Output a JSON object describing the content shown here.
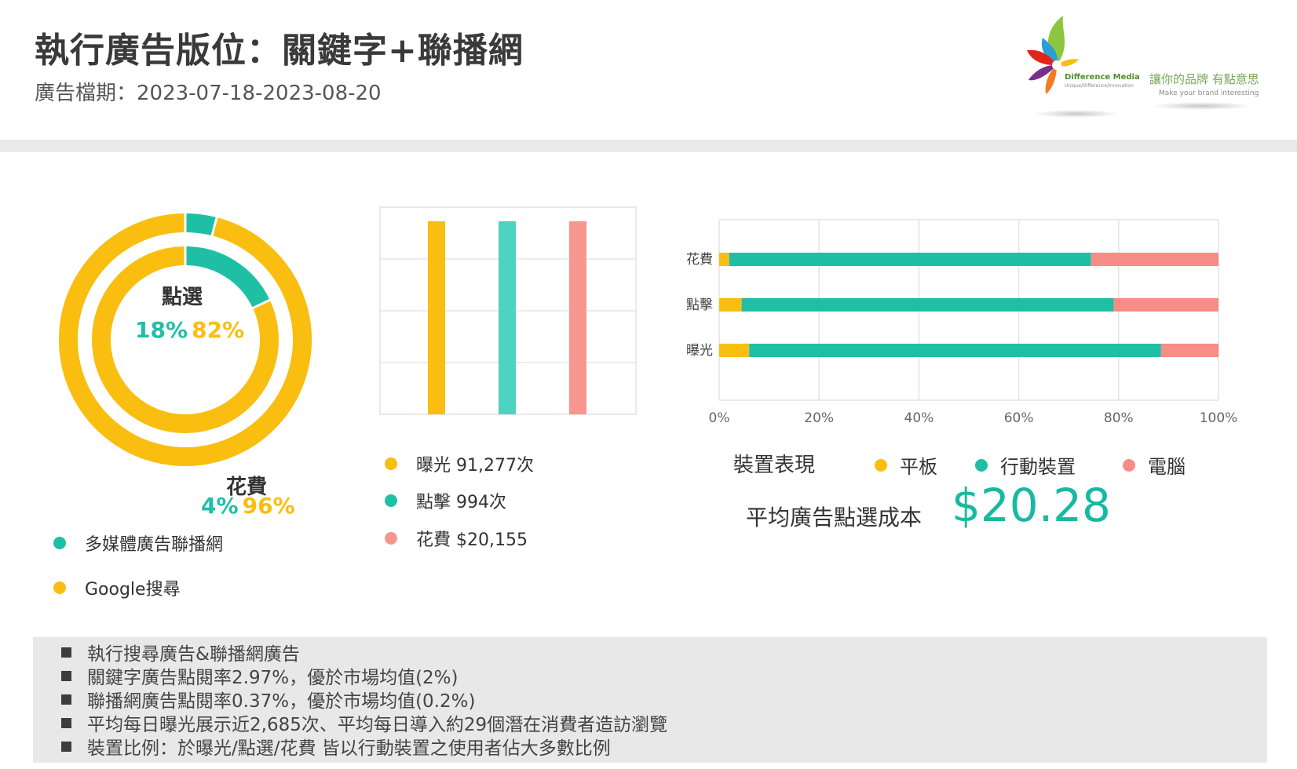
{
  "header": {
    "title": "執行廣告版位：關鍵字+聯播網",
    "period_label": "廣告檔期：2023-07-18-2023-08-20"
  },
  "logo": {
    "brand": "Difference Media",
    "tagline": "Unique/Difference/Innovation",
    "slogan": "讓你的品牌 有點意思",
    "slogan_en": "Make your brand interesting"
  },
  "donut": {
    "inner_label": "點選",
    "inner_pct_a": "18%",
    "inner_pct_b": "82%",
    "outer_label": "花費",
    "outer_pct_a": "4%",
    "outer_pct_b": "96%",
    "legend": [
      {
        "label": "多媒體廣告聯播網",
        "color": "#1fbfa6"
      },
      {
        "label": "Google搜尋",
        "color": "#f9be10"
      }
    ]
  },
  "metrics": {
    "items": [
      {
        "label": "曝光 91,277次",
        "color": "#f9be10"
      },
      {
        "label": "點擊 994次",
        "color": "#1fbfa6"
      },
      {
        "label": "花費 $20,155",
        "color": "#f79790"
      }
    ]
  },
  "device": {
    "title": "裝置表現",
    "legend": [
      {
        "label": "平板",
        "color": "#f9be10"
      },
      {
        "label": "行動裝置",
        "color": "#1fbfa6"
      },
      {
        "label": "電腦",
        "color": "#f88c87"
      }
    ]
  },
  "cpc": {
    "label": "平均廣告點選成本",
    "value": "$20.28"
  },
  "chart_data": [
    {
      "type": "pie",
      "title": "",
      "rings": [
        {
          "name": "點選",
          "values": [
            18,
            82
          ],
          "labels": [
            "多媒體廣告聯播網",
            "Google搜尋"
          ]
        },
        {
          "name": "花費",
          "values": [
            4,
            96
          ],
          "labels": [
            "多媒體廣告聯播網",
            "Google搜尋"
          ]
        }
      ],
      "colors": [
        "#1fbfa6",
        "#f9be10"
      ]
    },
    {
      "type": "bar",
      "categories": [
        "曝光",
        "點擊",
        "花費"
      ],
      "values": [
        1,
        1,
        1
      ],
      "colors": [
        "#f9be10",
        "#4fd3c1",
        "#f79790"
      ],
      "grid": true
    },
    {
      "type": "bar",
      "orientation": "horizontal",
      "stacked": true,
      "percent": true,
      "categories": [
        "花費",
        "點擊",
        "曝光"
      ],
      "series": [
        {
          "name": "平板",
          "values": [
            2,
            4.5,
            6
          ],
          "color": "#f9be10"
        },
        {
          "name": "行動裝置",
          "values": [
            72.5,
            74.5,
            82.5
          ],
          "color": "#1fbfa6"
        },
        {
          "name": "電腦",
          "values": [
            25.5,
            21,
            11.5
          ],
          "color": "#f88c87"
        }
      ],
      "x_ticks": [
        "0%",
        "20%",
        "40%",
        "60%",
        "80%",
        "100%"
      ],
      "xlim": [
        0,
        100
      ],
      "grid": true,
      "legend_position": "bottom"
    }
  ],
  "notes": [
    "執行搜尋廣告&聯播網廣告",
    "關鍵字廣告點閱率2.97%，優於市場均值(2%)",
    "聯播網廣告點閱率0.37%，優於市場均值(0.2%)",
    "平均每日曝光展示近2,685次、平均每日導入約29個潛在消費者造訪瀏覽",
    "裝置比例：於曝光/點選/花費 皆以行動裝置之使用者佔大多數比例"
  ]
}
